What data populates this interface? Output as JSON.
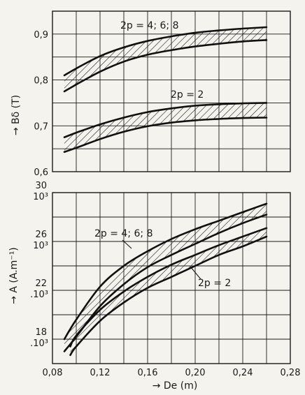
{
  "chart_data": [
    {
      "type": "area",
      "title": "",
      "ylabel": "→ Bδ (T)",
      "xlim": [
        0.08,
        0.28
      ],
      "ylim": [
        0.6,
        0.95
      ],
      "grid": true,
      "yticks": [
        "0,6",
        "0,7",
        "0,8",
        "0,9"
      ],
      "series": [
        {
          "name": "2p = 4; 6; 8",
          "x": [
            0.09,
            0.1,
            0.12,
            0.14,
            0.16,
            0.18,
            0.2,
            0.22,
            0.24,
            0.26
          ],
          "upper": [
            0.81,
            0.825,
            0.852,
            0.871,
            0.885,
            0.895,
            0.903,
            0.908,
            0.912,
            0.915
          ],
          "lower": [
            0.775,
            0.79,
            0.818,
            0.84,
            0.855,
            0.865,
            0.873,
            0.879,
            0.884,
            0.887
          ]
        },
        {
          "name": "2p = 2",
          "x": [
            0.09,
            0.1,
            0.12,
            0.14,
            0.16,
            0.18,
            0.2,
            0.22,
            0.24,
            0.26
          ],
          "upper": [
            0.675,
            0.685,
            0.703,
            0.718,
            0.73,
            0.738,
            0.744,
            0.747,
            0.749,
            0.75
          ],
          "lower": [
            0.643,
            0.652,
            0.671,
            0.687,
            0.699,
            0.707,
            0.712,
            0.715,
            0.717,
            0.718
          ]
        }
      ]
    },
    {
      "type": "area",
      "title": "",
      "ylabel": "→ A (A.m⁻¹)",
      "xlabel": "→ De (m)",
      "xlim": [
        0.08,
        0.28
      ],
      "ylim": [
        16000,
        30000
      ],
      "grid": true,
      "xticks": [
        "0,08",
        "0,12",
        "0,16",
        "0,20",
        "0,24",
        "0,28"
      ],
      "yticks": [
        {
          "num": "18",
          "exp": ".10³"
        },
        {
          "num": "22",
          "exp": ".10³"
        },
        {
          "num": "26",
          "exp": "10³"
        },
        {
          "num": "30",
          "exp": "10³"
        }
      ],
      "series": [
        {
          "name": "2p = 4; 6; 8",
          "x": [
            0.09,
            0.1,
            0.12,
            0.14,
            0.16,
            0.18,
            0.2,
            0.22,
            0.24,
            0.26
          ],
          "upper": [
            18000,
            19600,
            22300,
            24000,
            25200,
            26200,
            27000,
            27700,
            28400,
            29100
          ],
          "lower": [
            17000,
            18200,
            20700,
            22500,
            23900,
            24900,
            25800,
            26700,
            27500,
            28200
          ]
        },
        {
          "name": "2p = 2",
          "x": [
            0.095,
            0.1,
            0.12,
            0.14,
            0.16,
            0.18,
            0.2,
            0.22,
            0.24,
            0.26
          ],
          "upper": [
            17400,
            18300,
            20400,
            21900,
            23100,
            24100,
            24900,
            25700,
            26400,
            27100
          ],
          "lower": [
            16700,
            17400,
            19500,
            21000,
            22200,
            23100,
            24000,
            24900,
            25600,
            26400
          ]
        }
      ]
    }
  ]
}
